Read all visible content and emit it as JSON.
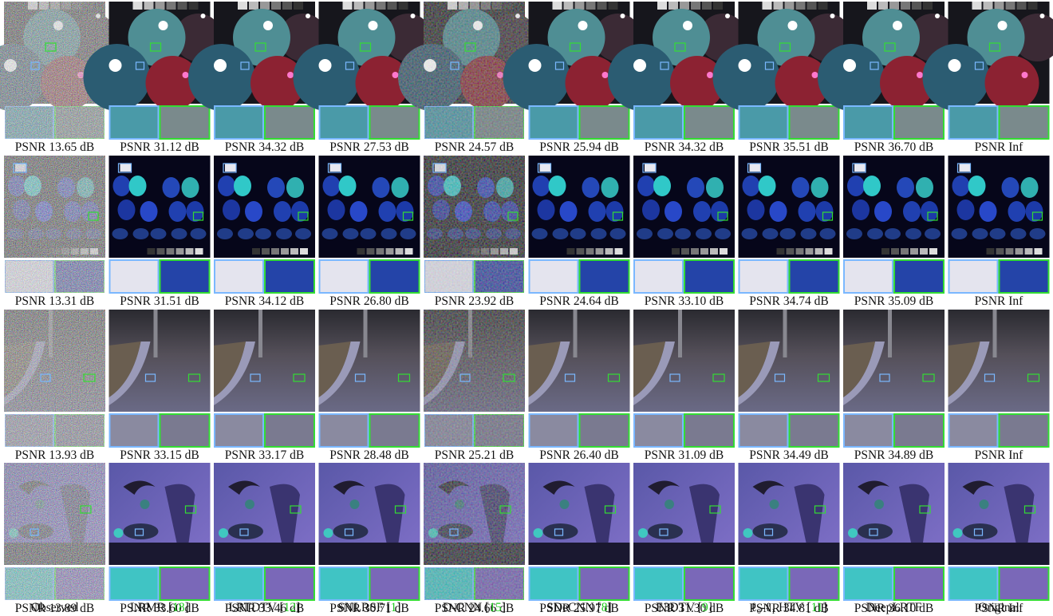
{
  "rows": [
    {
      "psnr": [
        "PSNR 13.65 dB",
        "PSNR 31.12 dB",
        "PSNR 34.32 dB",
        "PSNR 27.53 dB",
        "PSNR 24.57 dB",
        "PSNR 25.94 dB",
        "PSNR 34.32 dB",
        "PSNR 35.51 dB",
        "PSNR 36.70 dB",
        "PSNR Inf"
      ]
    },
    {
      "psnr": [
        "PSNR 13.31 dB",
        "PSNR 31.51 dB",
        "PSNR 34.12 dB",
        "PSNR 26.80 dB",
        "PSNR 23.92 dB",
        "PSNR 24.64 dB",
        "PSNR 33.10 dB",
        "PSNR 34.74 dB",
        "PSNR 35.09 dB",
        "PSNR Inf"
      ]
    },
    {
      "psnr": [
        "PSNR 13.93 dB",
        "PSNR 33.15 dB",
        "PSNR 33.17 dB",
        "PSNR 28.48 dB",
        "PSNR 25.21 dB",
        "PSNR 26.40 dB",
        "PSNR 31.09 dB",
        "PSNR 34.49 dB",
        "PSNR 34.89 dB",
        "PSNR Inf"
      ]
    },
    {
      "psnr": [
        "PSNR 13.89 dB",
        "PSNR 33.60 dB",
        "PSNR 33.46 dB",
        "PSNR 30.71 dB",
        "PSNR 24.66 dB",
        "PSNR 25.97 dB",
        "PSNR 31.30 dB",
        "PSNR 34.81 dB",
        "PSNR 36.10 dB",
        "PSNR Inf"
      ]
    }
  ],
  "methods": [
    {
      "name": "Observed"
    },
    {
      "name": "LRMR",
      "ref": "18"
    },
    {
      "name": "LRTDTV",
      "ref": "12"
    },
    {
      "name": "SNLRSF",
      "ref": "1"
    },
    {
      "name": "D-CNN",
      "ref": "15"
    },
    {
      "name": "SDeCNN",
      "ref": "8"
    },
    {
      "name": "E3DTV",
      "ref": "9"
    },
    {
      "name": "ℓ₀-ℓ₁ HTV",
      "ref": "11"
    },
    {
      "name": "DeepLRTF"
    },
    {
      "name": "Original"
    }
  ],
  "ref_brackets": [
    "[",
    "]"
  ]
}
